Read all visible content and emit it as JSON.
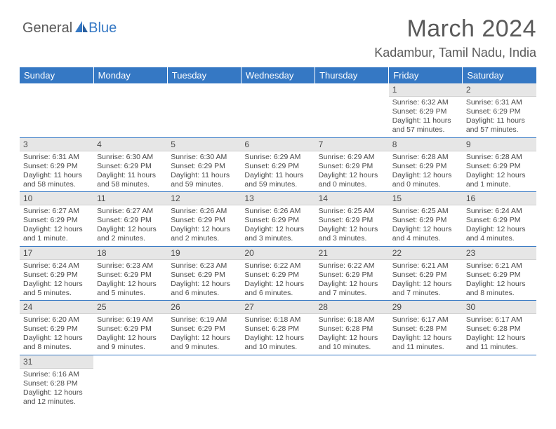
{
  "logo": {
    "general": "General",
    "blue": "Blue"
  },
  "title": "March 2024",
  "location": "Kadambur, Tamil Nadu, India",
  "colors": {
    "header_bg": "#3578c4",
    "header_text": "#ffffff",
    "daynum_bg": "#e6e6e6",
    "text": "#4a4a4a",
    "row_border": "#3578c4",
    "logo_blue": "#3578c4"
  },
  "days_of_week": [
    "Sunday",
    "Monday",
    "Tuesday",
    "Wednesday",
    "Thursday",
    "Friday",
    "Saturday"
  ],
  "weeks": [
    [
      null,
      null,
      null,
      null,
      null,
      {
        "n": "1",
        "sr": "Sunrise: 6:32 AM",
        "ss": "Sunset: 6:29 PM",
        "dl": "Daylight: 11 hours and 57 minutes."
      },
      {
        "n": "2",
        "sr": "Sunrise: 6:31 AM",
        "ss": "Sunset: 6:29 PM",
        "dl": "Daylight: 11 hours and 57 minutes."
      }
    ],
    [
      {
        "n": "3",
        "sr": "Sunrise: 6:31 AM",
        "ss": "Sunset: 6:29 PM",
        "dl": "Daylight: 11 hours and 58 minutes."
      },
      {
        "n": "4",
        "sr": "Sunrise: 6:30 AM",
        "ss": "Sunset: 6:29 PM",
        "dl": "Daylight: 11 hours and 58 minutes."
      },
      {
        "n": "5",
        "sr": "Sunrise: 6:30 AM",
        "ss": "Sunset: 6:29 PM",
        "dl": "Daylight: 11 hours and 59 minutes."
      },
      {
        "n": "6",
        "sr": "Sunrise: 6:29 AM",
        "ss": "Sunset: 6:29 PM",
        "dl": "Daylight: 11 hours and 59 minutes."
      },
      {
        "n": "7",
        "sr": "Sunrise: 6:29 AM",
        "ss": "Sunset: 6:29 PM",
        "dl": "Daylight: 12 hours and 0 minutes."
      },
      {
        "n": "8",
        "sr": "Sunrise: 6:28 AM",
        "ss": "Sunset: 6:29 PM",
        "dl": "Daylight: 12 hours and 0 minutes."
      },
      {
        "n": "9",
        "sr": "Sunrise: 6:28 AM",
        "ss": "Sunset: 6:29 PM",
        "dl": "Daylight: 12 hours and 1 minute."
      }
    ],
    [
      {
        "n": "10",
        "sr": "Sunrise: 6:27 AM",
        "ss": "Sunset: 6:29 PM",
        "dl": "Daylight: 12 hours and 1 minute."
      },
      {
        "n": "11",
        "sr": "Sunrise: 6:27 AM",
        "ss": "Sunset: 6:29 PM",
        "dl": "Daylight: 12 hours and 2 minutes."
      },
      {
        "n": "12",
        "sr": "Sunrise: 6:26 AM",
        "ss": "Sunset: 6:29 PM",
        "dl": "Daylight: 12 hours and 2 minutes."
      },
      {
        "n": "13",
        "sr": "Sunrise: 6:26 AM",
        "ss": "Sunset: 6:29 PM",
        "dl": "Daylight: 12 hours and 3 minutes."
      },
      {
        "n": "14",
        "sr": "Sunrise: 6:25 AM",
        "ss": "Sunset: 6:29 PM",
        "dl": "Daylight: 12 hours and 3 minutes."
      },
      {
        "n": "15",
        "sr": "Sunrise: 6:25 AM",
        "ss": "Sunset: 6:29 PM",
        "dl": "Daylight: 12 hours and 4 minutes."
      },
      {
        "n": "16",
        "sr": "Sunrise: 6:24 AM",
        "ss": "Sunset: 6:29 PM",
        "dl": "Daylight: 12 hours and 4 minutes."
      }
    ],
    [
      {
        "n": "17",
        "sr": "Sunrise: 6:24 AM",
        "ss": "Sunset: 6:29 PM",
        "dl": "Daylight: 12 hours and 5 minutes."
      },
      {
        "n": "18",
        "sr": "Sunrise: 6:23 AM",
        "ss": "Sunset: 6:29 PM",
        "dl": "Daylight: 12 hours and 5 minutes."
      },
      {
        "n": "19",
        "sr": "Sunrise: 6:23 AM",
        "ss": "Sunset: 6:29 PM",
        "dl": "Daylight: 12 hours and 6 minutes."
      },
      {
        "n": "20",
        "sr": "Sunrise: 6:22 AM",
        "ss": "Sunset: 6:29 PM",
        "dl": "Daylight: 12 hours and 6 minutes."
      },
      {
        "n": "21",
        "sr": "Sunrise: 6:22 AM",
        "ss": "Sunset: 6:29 PM",
        "dl": "Daylight: 12 hours and 7 minutes."
      },
      {
        "n": "22",
        "sr": "Sunrise: 6:21 AM",
        "ss": "Sunset: 6:29 PM",
        "dl": "Daylight: 12 hours and 7 minutes."
      },
      {
        "n": "23",
        "sr": "Sunrise: 6:21 AM",
        "ss": "Sunset: 6:29 PM",
        "dl": "Daylight: 12 hours and 8 minutes."
      }
    ],
    [
      {
        "n": "24",
        "sr": "Sunrise: 6:20 AM",
        "ss": "Sunset: 6:29 PM",
        "dl": "Daylight: 12 hours and 8 minutes."
      },
      {
        "n": "25",
        "sr": "Sunrise: 6:19 AM",
        "ss": "Sunset: 6:29 PM",
        "dl": "Daylight: 12 hours and 9 minutes."
      },
      {
        "n": "26",
        "sr": "Sunrise: 6:19 AM",
        "ss": "Sunset: 6:29 PM",
        "dl": "Daylight: 12 hours and 9 minutes."
      },
      {
        "n": "27",
        "sr": "Sunrise: 6:18 AM",
        "ss": "Sunset: 6:28 PM",
        "dl": "Daylight: 12 hours and 10 minutes."
      },
      {
        "n": "28",
        "sr": "Sunrise: 6:18 AM",
        "ss": "Sunset: 6:28 PM",
        "dl": "Daylight: 12 hours and 10 minutes."
      },
      {
        "n": "29",
        "sr": "Sunrise: 6:17 AM",
        "ss": "Sunset: 6:28 PM",
        "dl": "Daylight: 12 hours and 11 minutes."
      },
      {
        "n": "30",
        "sr": "Sunrise: 6:17 AM",
        "ss": "Sunset: 6:28 PM",
        "dl": "Daylight: 12 hours and 11 minutes."
      }
    ],
    [
      {
        "n": "31",
        "sr": "Sunrise: 6:16 AM",
        "ss": "Sunset: 6:28 PM",
        "dl": "Daylight: 12 hours and 12 minutes."
      },
      null,
      null,
      null,
      null,
      null,
      null
    ]
  ]
}
